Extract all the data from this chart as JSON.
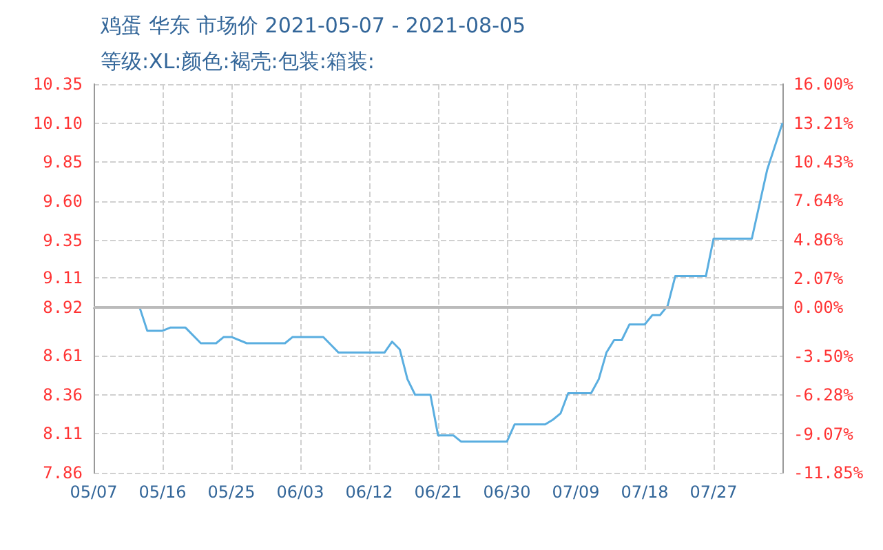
{
  "chart_data": {
    "type": "line",
    "title": "鸡蛋 华东 市场价 2021-05-07 - 2021-08-05",
    "subtitle": "等级:XL:颜色:褐壳:包装:箱装:",
    "x": [
      "2021-05-07",
      "2021-05-13",
      "2021-05-14",
      "2021-05-16",
      "2021-05-17",
      "2021-05-19",
      "2021-05-21",
      "2021-05-23",
      "2021-05-24",
      "2021-05-25",
      "2021-05-27",
      "2021-06-01",
      "2021-06-02",
      "2021-06-06",
      "2021-06-08",
      "2021-06-14",
      "2021-06-15",
      "2021-06-16",
      "2021-06-17",
      "2021-06-18",
      "2021-06-20",
      "2021-06-21",
      "2021-06-23",
      "2021-06-24",
      "2021-06-30",
      "2021-07-01",
      "2021-07-05",
      "2021-07-06",
      "2021-07-07",
      "2021-07-08",
      "2021-07-11",
      "2021-07-12",
      "2021-07-13",
      "2021-07-14",
      "2021-07-15",
      "2021-07-16",
      "2021-07-18",
      "2021-07-19",
      "2021-07-20",
      "2021-07-21",
      "2021-07-22",
      "2021-07-26",
      "2021-07-27",
      "2021-08-01",
      "2021-08-03",
      "2021-08-05"
    ],
    "series": [
      {
        "color": "#5aaee0",
        "values": [
          8.92,
          8.92,
          8.77,
          8.77,
          8.79,
          8.79,
          8.69,
          8.69,
          8.73,
          8.73,
          8.69,
          8.69,
          8.73,
          8.73,
          8.63,
          8.63,
          8.7,
          8.65,
          8.46,
          8.36,
          8.36,
          8.1,
          8.1,
          8.06,
          8.06,
          8.17,
          8.17,
          8.2,
          8.24,
          8.37,
          8.37,
          8.46,
          8.63,
          8.71,
          8.71,
          8.81,
          8.81,
          8.87,
          8.87,
          8.93,
          9.12,
          9.12,
          9.36,
          9.36,
          9.8,
          10.1
        ]
      }
    ],
    "xlim": [
      "2021-05-07",
      "2021-08-05"
    ],
    "xticks": [
      {
        "value": "2021-05-07",
        "label": "05/07"
      },
      {
        "value": "2021-05-16",
        "label": "05/16"
      },
      {
        "value": "2021-05-25",
        "label": "05/25"
      },
      {
        "value": "2021-06-03",
        "label": "06/03"
      },
      {
        "value": "2021-06-12",
        "label": "06/12"
      },
      {
        "value": "2021-06-21",
        "label": "06/21"
      },
      {
        "value": "2021-06-30",
        "label": "06/30"
      },
      {
        "value": "2021-07-09",
        "label": "07/09"
      },
      {
        "value": "2021-07-18",
        "label": "07/18"
      },
      {
        "value": "2021-07-27",
        "label": "07/27"
      }
    ],
    "ylim": [
      7.86,
      10.35
    ],
    "yticks": [
      7.86,
      8.11,
      8.36,
      8.61,
      8.92,
      9.11,
      9.35,
      {
        "value": 9.6,
        "label": "9.60"
      },
      9.85,
      {
        "value": 10.1,
        "label": "10.10"
      },
      10.35
    ],
    "y2lim": [
      -11.85,
      16
    ],
    "y2ticks": [
      {
        "value": -11.85,
        "label": "-11.85%"
      },
      {
        "value": -9.07,
        "label": "-9.07%"
      },
      {
        "value": -6.28,
        "label": "-6.28%"
      },
      {
        "value": -3.5,
        "label": "-3.50%"
      },
      {
        "value": 0,
        "label": "0.00%"
      },
      {
        "value": 2.07,
        "label": "2.07%"
      },
      {
        "value": 4.86,
        "label": "4.86%"
      },
      {
        "value": 7.64,
        "label": "7.64%"
      },
      {
        "value": 10.43,
        "label": "10.43%"
      },
      {
        "value": 13.21,
        "label": "13.21%"
      },
      {
        "value": 16,
        "label": "16.00%"
      }
    ],
    "ref_lines": [
      {
        "axis": "y",
        "value": 8.92,
        "color": "#bbbbbb"
      }
    ],
    "grid": true,
    "marker": "none",
    "line_style": "solid"
  }
}
